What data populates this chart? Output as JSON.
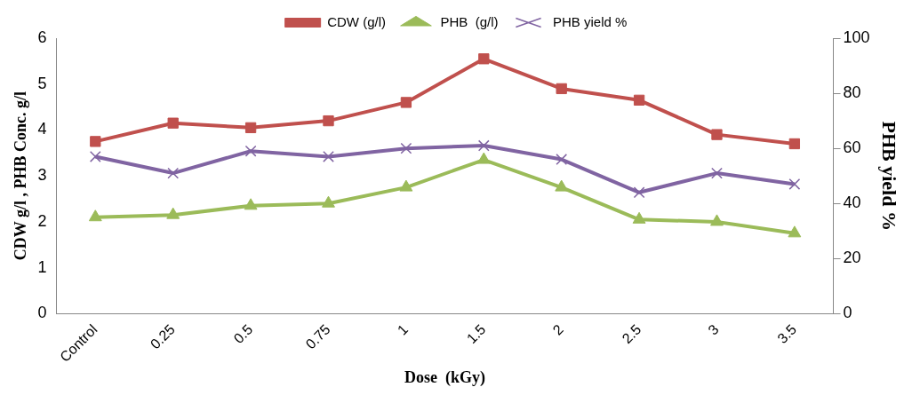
{
  "chart_data": {
    "type": "line",
    "categories": [
      "Control",
      "0.25",
      "0.5",
      "0.75",
      "1",
      "1.5",
      "2",
      "2.5",
      "3",
      "3.5"
    ],
    "series": [
      {
        "name": "CDW (g/l)",
        "color": "#c0504d",
        "marker": "square",
        "values": [
          3.75,
          4.15,
          4.05,
          4.2,
          4.6,
          5.55,
          4.9,
          4.65,
          3.9,
          3.7
        ]
      },
      {
        "name": "PHB  (g/l)",
        "color": "#9bbb59",
        "marker": "triangle",
        "values": [
          2.1,
          2.15,
          2.35,
          2.4,
          2.75,
          3.35,
          2.75,
          2.05,
          2.0,
          1.75
        ]
      },
      {
        "name": "PHB yield %",
        "color": "#8064a2",
        "marker": "cross",
        "axis": "y2",
        "values": [
          57,
          51,
          59,
          57,
          60,
          61,
          56,
          44,
          51,
          47
        ]
      }
    ],
    "xlabel": "Dose  (kGy)",
    "ylabel": "CDW g/l , PHB Conc. g/l",
    "y2label": "PHB yield %",
    "ylim": [
      0,
      6
    ],
    "yticks": [
      0,
      1,
      2,
      3,
      4,
      5,
      6
    ],
    "y2lim": [
      0,
      100
    ],
    "y2ticks": [
      0,
      20,
      40,
      60,
      80,
      100
    ],
    "legend": "top",
    "grid": false
  }
}
